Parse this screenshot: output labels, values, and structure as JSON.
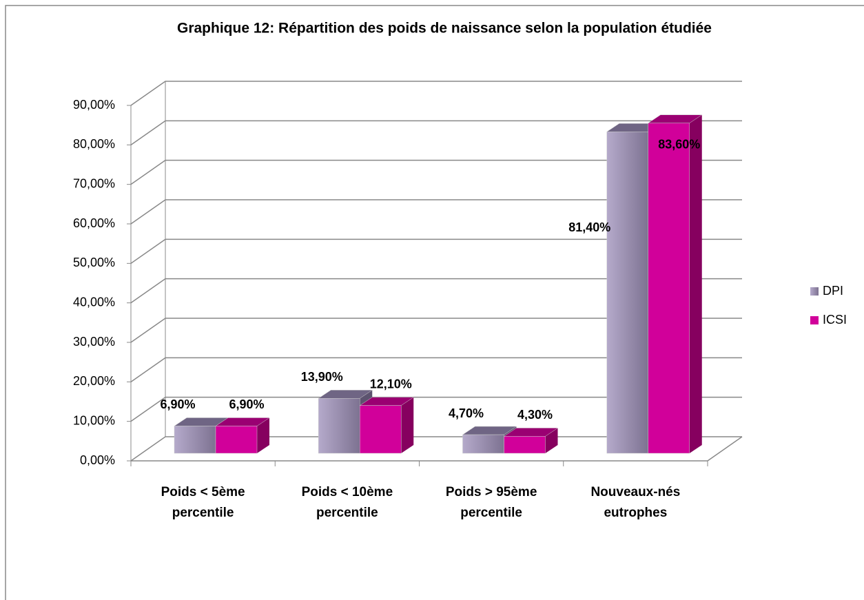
{
  "chart_data": {
    "type": "bar3d",
    "title": "Graphique 12: Répartition des poids de naissance selon la population étudiée",
    "categories": [
      "Poids < 5ème percentile",
      "Poids < 10ème percentile",
      "Poids > 95ème percentile",
      "Nouveaux-nés eutrophes"
    ],
    "series": [
      {
        "name": "DPI",
        "color": "#a597bd",
        "values": [
          6.9,
          13.9,
          4.7,
          81.4
        ],
        "value_labels": [
          "6,90%",
          "13,90%",
          "4,70%",
          "81,40%"
        ]
      },
      {
        "name": "ICSI",
        "color": "#d1009a",
        "values": [
          6.9,
          12.1,
          4.3,
          83.6
        ],
        "value_labels": [
          "6,90%",
          "12,10%",
          "4,30%",
          "83,60%"
        ]
      }
    ],
    "ylim": [
      0,
      90
    ],
    "yticks": [
      {
        "value": 0,
        "label": "0,00%"
      },
      {
        "value": 10,
        "label": "10,00%"
      },
      {
        "value": 20,
        "label": "20,00%"
      },
      {
        "value": 30,
        "label": "30,00%"
      },
      {
        "value": 40,
        "label": "40,00%"
      },
      {
        "value": 50,
        "label": "50,00%"
      },
      {
        "value": 60,
        "label": "60,00%"
      },
      {
        "value": 70,
        "label": "70,00%"
      },
      {
        "value": 80,
        "label": "80,00%"
      },
      {
        "value": 90,
        "label": "90,00%"
      }
    ],
    "grid": true,
    "legend": "right"
  }
}
